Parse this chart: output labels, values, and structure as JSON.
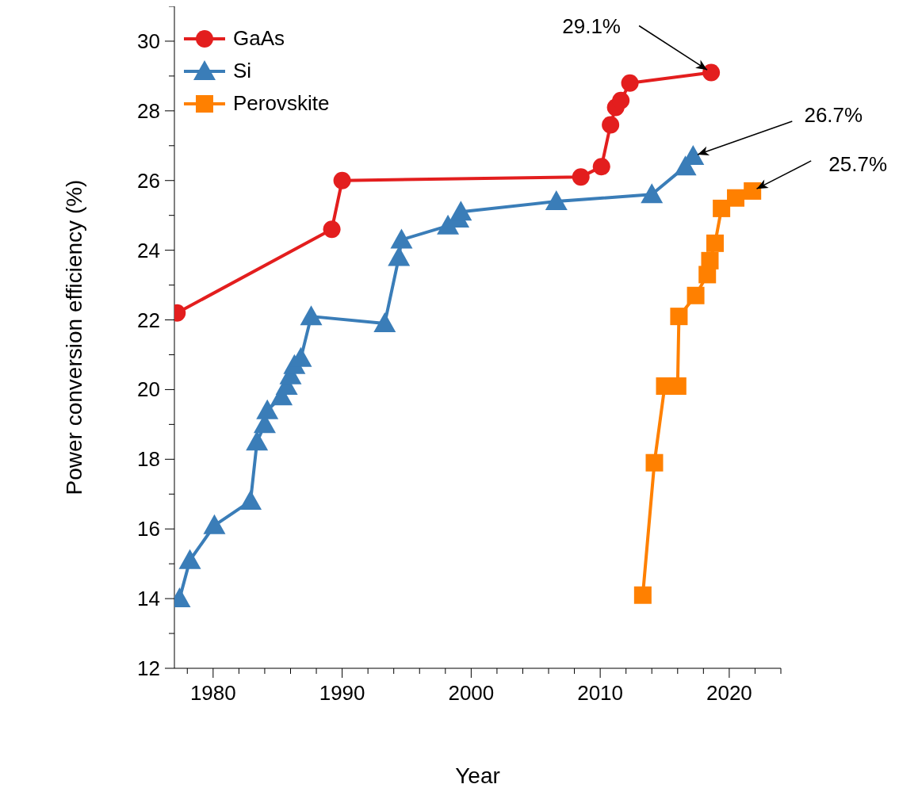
{
  "chart_data": {
    "type": "line",
    "xlabel": "Year",
    "ylabel": "Power conversion efficiency (%)",
    "xlim": [
      1977,
      2024
    ],
    "ylim": [
      12,
      31
    ],
    "xticks": [
      {
        "value": 1978,
        "label": null
      },
      1980,
      {
        "value": 1982,
        "label": null
      },
      {
        "value": 1984,
        "label": null
      },
      {
        "value": 1986,
        "label": null
      },
      {
        "value": 1988,
        "label": null
      },
      1990,
      {
        "value": 1992,
        "label": null
      },
      {
        "value": 1994,
        "label": null
      },
      {
        "value": 1996,
        "label": null
      },
      {
        "value": 1998,
        "label": null
      },
      2000,
      {
        "value": 2002,
        "label": null
      },
      {
        "value": 2004,
        "label": null
      },
      {
        "value": 2006,
        "label": null
      },
      {
        "value": 2008,
        "label": null
      },
      2010,
      {
        "value": 2012,
        "label": null
      },
      {
        "value": 2014,
        "label": null
      },
      {
        "value": 2016,
        "label": null
      },
      {
        "value": 2018,
        "label": null
      },
      2020,
      {
        "value": 2022,
        "label": null
      },
      {
        "value": 2024,
        "label": null
      }
    ],
    "yticks": [
      12,
      {
        "value": 13,
        "label": null
      },
      14,
      {
        "value": 15,
        "label": null
      },
      16,
      {
        "value": 17,
        "label": null
      },
      18,
      {
        "value": 19,
        "label": null
      },
      20,
      {
        "value": 21,
        "label": null
      },
      22,
      {
        "value": 23,
        "label": null
      },
      24,
      {
        "value": 25,
        "label": null
      },
      26,
      {
        "value": 27,
        "label": null
      },
      28,
      {
        "value": 29,
        "label": null
      },
      30,
      {
        "value": 31,
        "label": null
      }
    ],
    "legend": "top left",
    "line_style": "solid",
    "series": [
      {
        "name": "GaAs",
        "color": "#e31e1e",
        "marker": "circle",
        "x": [
          1977.2,
          1989.2,
          1990,
          2008.5,
          2010.1,
          2010.8,
          2011.2,
          2011.6,
          2012.3,
          2018.6
        ],
        "values": [
          22.2,
          24.6,
          26.0,
          26.1,
          26.4,
          27.6,
          28.1,
          28.3,
          28.8,
          29.1
        ]
      },
      {
        "name": "Si",
        "color": "#3a7db8",
        "marker": "triangle",
        "x": [
          1977.4,
          1978.2,
          1980.1,
          1982.9,
          1983.4,
          1984,
          1984.2,
          1985.3,
          1985.7,
          1986,
          1986.3,
          1986.8,
          1987.6,
          1993.3,
          1994.4,
          1994.6,
          1998.2,
          1999,
          1999.2,
          2006.6,
          2014,
          2016.6,
          2017.2
        ],
        "values": [
          14.0,
          15.1,
          16.1,
          16.8,
          18.5,
          19.0,
          19.4,
          19.8,
          20.1,
          20.4,
          20.7,
          20.9,
          22.1,
          21.9,
          23.8,
          24.3,
          24.7,
          24.9,
          25.1,
          25.4,
          25.6,
          26.4,
          26.7
        ]
      },
      {
        "name": "Perovskite",
        "color": "#ff8000",
        "marker": "square",
        "x": [
          2013.3,
          2014.2,
          2015,
          2016,
          2016.1,
          2017.4,
          2018.3,
          2018.5,
          2018.9,
          2019.4,
          2020.5,
          2021.8
        ],
        "values": [
          14.1,
          17.9,
          20.1,
          20.1,
          22.1,
          22.7,
          23.3,
          23.7,
          24.2,
          25.2,
          25.5,
          25.7
        ]
      }
    ],
    "annotations": [
      {
        "text": "29.1%",
        "x": 2018.6,
        "y": 29.1
      },
      {
        "text": "26.7%",
        "x": 2017.2,
        "y": 26.7
      },
      {
        "text": "25.7%",
        "x": 2021.8,
        "y": 25.7
      }
    ]
  }
}
